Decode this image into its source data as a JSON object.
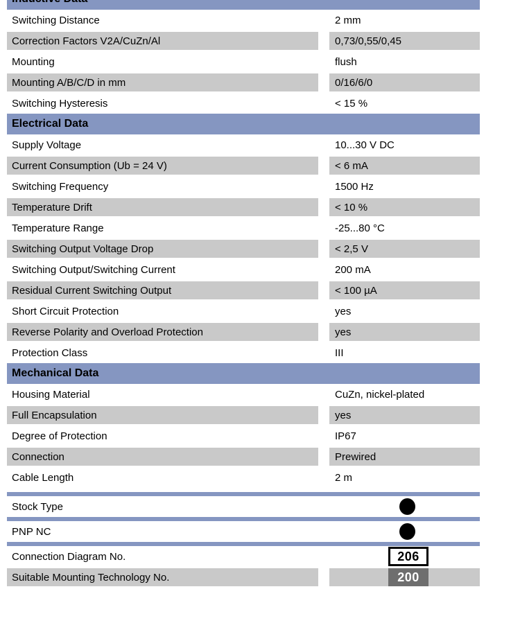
{
  "colors": {
    "header_blue": "#8596c1",
    "row_gray": "#c9c9c9",
    "badge_gray": "#6e6e6e",
    "text": "#000000"
  },
  "sections": [
    {
      "title": "Inductive Data",
      "clipped": true,
      "rows": [
        {
          "label": "Switching Distance",
          "value": "2 mm"
        },
        {
          "label": "Correction Factors V2A/CuZn/Al",
          "value": "0,73/0,55/0,45"
        },
        {
          "label": "Mounting",
          "value": "flush"
        },
        {
          "label": "Mounting A/B/C/D in mm",
          "value": "0/16/6/0"
        },
        {
          "label": "Switching Hysteresis",
          "value": "< 15 %"
        }
      ]
    },
    {
      "title": "Electrical Data",
      "clipped": false,
      "rows": [
        {
          "label": "Supply Voltage",
          "value": "10...30 V DC"
        },
        {
          "label": "Current Consumption (Ub = 24 V)",
          "value": "< 6 mA"
        },
        {
          "label": "Switching Frequency",
          "value": "1500 Hz"
        },
        {
          "label": "Temperature Drift",
          "value": "< 10 %"
        },
        {
          "label": "Temperature Range",
          "value": "-25...80 °C"
        },
        {
          "label": "Switching Output Voltage Drop",
          "value": "< 2,5 V"
        },
        {
          "label": "Switching Output/Switching Current",
          "value": "200 mA"
        },
        {
          "label": "Residual Current Switching Output",
          "value": "< 100 µA"
        },
        {
          "label": "Short Circuit Protection",
          "value": "yes"
        },
        {
          "label": "Reverse Polarity and Overload Protection",
          "value": "yes"
        },
        {
          "label": "Protection Class",
          "value": "III"
        }
      ]
    },
    {
      "title": "Mechanical Data",
      "clipped": false,
      "rows": [
        {
          "label": "Housing Material",
          "value": "CuZn, nickel-plated"
        },
        {
          "label": "Full Encapsulation",
          "value": "yes"
        },
        {
          "label": "Degree of Protection",
          "value": "IP67"
        },
        {
          "label": "Connection",
          "value": "Prewired"
        },
        {
          "label": "Cable Length",
          "value": "2 m"
        }
      ]
    }
  ],
  "feature_rows": [
    {
      "label": "Stock Type",
      "indicator": "filled-dot"
    },
    {
      "label": "PNP NC",
      "indicator": "filled-dot"
    }
  ],
  "reference_rows": [
    {
      "label": "Connection Diagram No.",
      "value": "206",
      "style": "outlined",
      "shaded": false
    },
    {
      "label": "Suitable Mounting Technology No.",
      "value": "200",
      "style": "filled",
      "shaded": true
    }
  ]
}
